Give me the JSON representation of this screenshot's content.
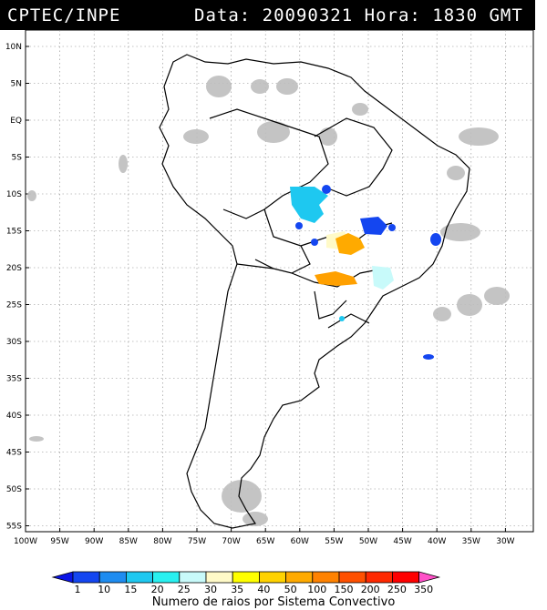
{
  "header": {
    "agency": "CPTEC/INPE",
    "date_label": "Data:",
    "date": "20090321",
    "time_label": "Hora:",
    "time": "1830 GMT"
  },
  "map": {
    "lat_labels": [
      "10N",
      "5N",
      "EQ",
      "5S",
      "10S",
      "15S",
      "20S",
      "25S",
      "30S",
      "35S",
      "40S",
      "45S",
      "50S",
      "55S"
    ],
    "lon_labels": [
      "100W",
      "95W",
      "90W",
      "85W",
      "80W",
      "75W",
      "70W",
      "65W",
      "60W",
      "55W",
      "50W",
      "45W",
      "40W",
      "35W",
      "30W"
    ]
  },
  "colorbar": {
    "title": "Numero de raios por Sistema Convectivo",
    "labels": [
      "1",
      "10",
      "15",
      "20",
      "25",
      "30",
      "35",
      "40",
      "50",
      "100",
      "150",
      "200",
      "250",
      "350"
    ],
    "colors": [
      "#0a14e6",
      "#1446f0",
      "#1e8cf0",
      "#1ec8f0",
      "#28f0f0",
      "#c8fafa",
      "#fffac8",
      "#ffff00",
      "#ffd200",
      "#ffaa00",
      "#ff8200",
      "#ff5000",
      "#ff2800",
      "#ff0000",
      "#ff50c8"
    ]
  },
  "colors": {
    "cloud": "#bebebe",
    "lightning_blue": "#1446f0",
    "lightning_cyan": "#1ec8f0",
    "lightning_orange": "#ffa000",
    "lightning_yellow": "#fffac8"
  }
}
